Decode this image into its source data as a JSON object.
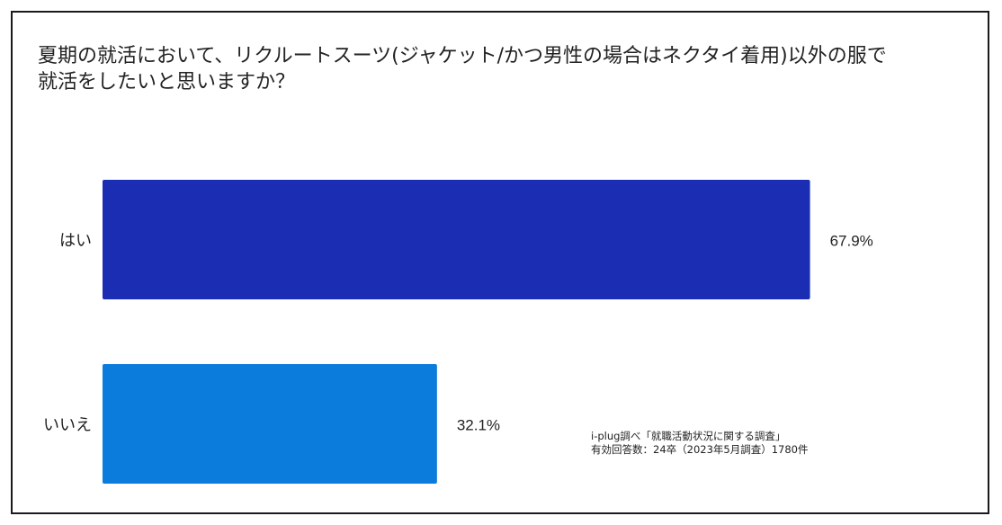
{
  "title_line1": "夏期の就活において、リクルートスーツ(ジャケット/かつ男性の場合はネクタイ着用)以外の服で",
  "title_line2": "就活をしたいと思いますか？",
  "source_line1": "i-plug調べ「就職活動状況に関する調査」",
  "source_line2": "有効回答数：24卒（2023年5月調査）1780件",
  "chart_data": {
    "type": "bar",
    "orientation": "horizontal",
    "categories": [
      "はい",
      "いいえ"
    ],
    "values": [
      67.9,
      32.1
    ],
    "value_labels": [
      "67.9%",
      "32.1%"
    ],
    "colors": [
      "#1a2db3",
      "#0b7cdb"
    ],
    "xlim": [
      0,
      68.8
    ],
    "grid": false,
    "legend": "none"
  }
}
